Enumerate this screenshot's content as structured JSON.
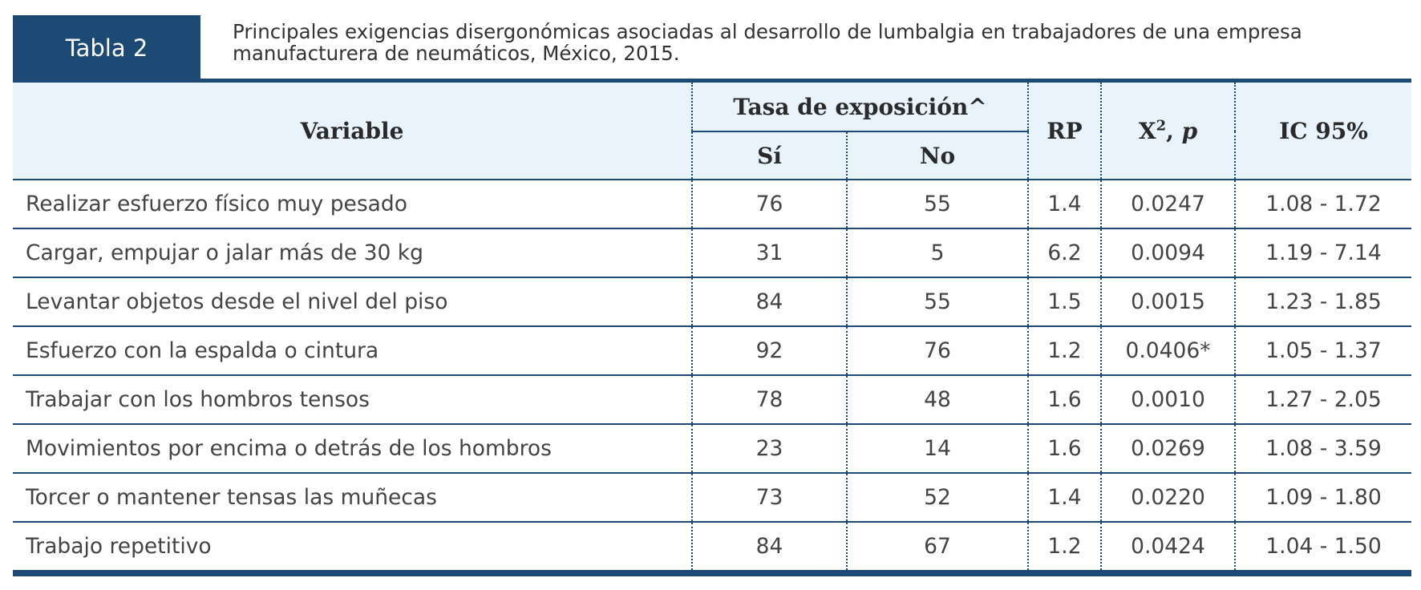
{
  "tag": "Tabla 2",
  "caption": "Principales exigencias disergonómicas asociadas al desarrollo de lumbalgia en trabajadores de una empresa manufacturera de neumáticos, México, 2015.",
  "header": {
    "variable": "Variable",
    "tasa": "Tasa de exposición^",
    "si": "Sí",
    "no": "No",
    "rp": "RP",
    "chi_base": "X",
    "chi_sup": "2",
    "chi_sep": ", ",
    "chi_p": "p",
    "ic": "IC 95%"
  },
  "rows": [
    {
      "variable": "Realizar esfuerzo físico muy pesado",
      "si": "76",
      "no": "55",
      "rp": "1.4",
      "p": "0.0247",
      "ic": "1.08 - 1.72"
    },
    {
      "variable": "Cargar, empujar o jalar más de 30 kg",
      "si": "31",
      "no": "5",
      "rp": "6.2",
      "p": "0.0094",
      "ic": "1.19 - 7.14"
    },
    {
      "variable": "Levantar objetos desde el nivel del piso",
      "si": "84",
      "no": "55",
      "rp": "1.5",
      "p": "0.0015",
      "ic": "1.23 - 1.85"
    },
    {
      "variable": "Esfuerzo con la espalda o cintura",
      "si": "92",
      "no": "76",
      "rp": "1.2",
      "p": "0.0406*",
      "ic": "1.05 - 1.37"
    },
    {
      "variable": "Trabajar con los hombros tensos",
      "si": "78",
      "no": "48",
      "rp": "1.6",
      "p": "0.0010",
      "ic": "1.27 - 2.05"
    },
    {
      "variable": "Movimientos por encima o detrás de los hombros",
      "si": "23",
      "no": "14",
      "rp": "1.6",
      "p": "0.0269",
      "ic": "1.08 - 3.59"
    },
    {
      "variable": "Torcer o mantener tensas las muñecas",
      "si": "73",
      "no": "52",
      "rp": "1.4",
      "p": "0.0220",
      "ic": "1.09 - 1.80"
    },
    {
      "variable": "Trabajo repetitivo",
      "si": "84",
      "no": "67",
      "rp": "1.2",
      "p": "0.0424",
      "ic": "1.04 - 1.50"
    }
  ],
  "colors": {
    "accent": "#1c4a74",
    "header_bg": "#e9f3fc"
  }
}
